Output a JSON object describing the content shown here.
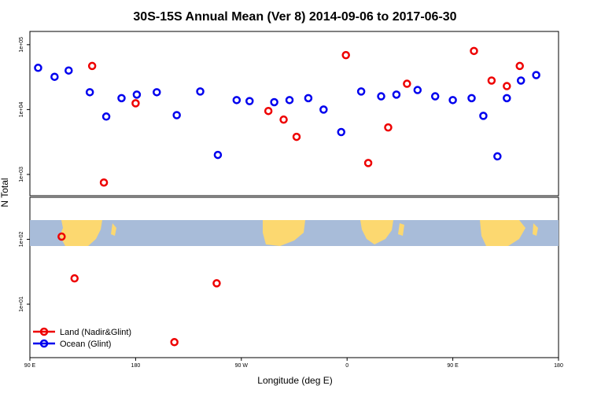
{
  "chart_data": {
    "type": "scatter",
    "title": "30S-15S Annual Mean (Ver 8)   2014-09-06 to 2017-06-30",
    "xlabel": "Longitude (deg E)",
    "ylabel": "N Total",
    "x_tick_labels": [
      "90 E",
      "180",
      "90 W",
      "0",
      "90 E",
      "180"
    ],
    "x_ticks": [
      90,
      180,
      270,
      360,
      450,
      540
    ],
    "xlim": [
      90,
      540
    ],
    "y_scale": "log",
    "y_tick_labels": [
      "1e+01",
      "1e+02",
      "1e+03",
      "1e+04",
      "1e+05"
    ],
    "y_ticks": [
      10,
      100,
      1000,
      10000,
      100000
    ],
    "ylim": [
      1.5,
      160000
    ],
    "grid": false,
    "legend_position": "bottom-left",
    "inset": "land/ocean map strip of the 30S-15S latitude band",
    "series": [
      {
        "name": "Land (Nadir&Glint)",
        "color": "#ee0000",
        "x": [
          117,
          128,
          143,
          153,
          180,
          213,
          249,
          293,
          306,
          317,
          359,
          378,
          395,
          411,
          468,
          483,
          496,
          507
        ],
        "y": [
          110,
          25,
          47000,
          750,
          12500,
          2.6,
          21,
          9500,
          7000,
          3800,
          69000,
          1500,
          5300,
          25000,
          80000,
          28000,
          23000,
          47000
        ]
      },
      {
        "name": "Ocean (Glint)",
        "color": "#0000ee",
        "x": [
          97,
          111,
          123,
          141,
          155,
          168,
          181,
          198,
          215,
          235,
          250,
          266,
          277,
          298,
          311,
          327,
          340,
          355,
          372,
          389,
          402,
          420,
          435,
          450,
          466,
          476,
          488,
          496,
          508,
          521
        ],
        "y": [
          44000,
          32000,
          40000,
          18500,
          7800,
          15000,
          17000,
          18500,
          8200,
          19000,
          2000,
          14000,
          13500,
          13000,
          14000,
          15000,
          10000,
          4500,
          19000,
          16000,
          17000,
          20000,
          16000,
          14000,
          15000,
          8000,
          1900,
          15000,
          28000,
          34000
        ]
      }
    ]
  }
}
